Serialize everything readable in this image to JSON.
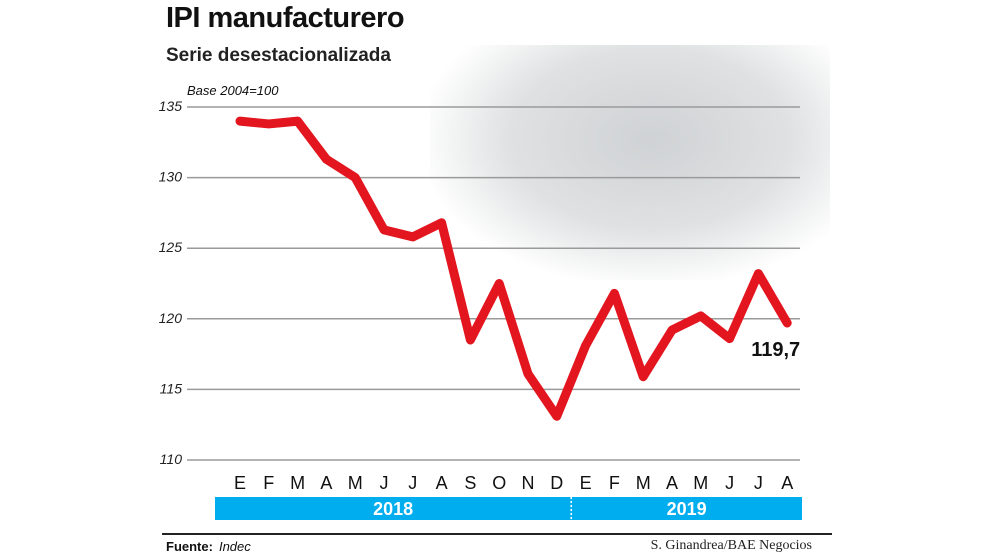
{
  "title": "IPI manufacturero",
  "subtitle": "Serie desestacionalizada",
  "footer": {
    "source_label": "Fuente:",
    "source_value": "Indec",
    "credit": "S. Ginandrea/BAE Negocios"
  },
  "colors": {
    "line": "#e3161f",
    "year_band": "#00adef",
    "grid": "#9a9a9a"
  },
  "background_image": "factory-workers-car-assembly-photo",
  "chart_data": {
    "type": "line",
    "title": "IPI manufacturero",
    "subtitle": "Serie desestacionalizada",
    "ylabel": "Base 2004=100",
    "ylim": [
      110,
      135
    ],
    "yticks": [
      110,
      115,
      120,
      125,
      130,
      135
    ],
    "grid": true,
    "categories": [
      "E",
      "F",
      "M",
      "A",
      "M",
      "J",
      "J",
      "A",
      "S",
      "O",
      "N",
      "D",
      "E",
      "F",
      "M",
      "A",
      "M",
      "J",
      "J",
      "A"
    ],
    "years": [
      {
        "label": "2018",
        "months": 12
      },
      {
        "label": "2019",
        "months": 8
      }
    ],
    "values": [
      134.0,
      133.8,
      134.0,
      131.3,
      130.0,
      126.3,
      125.8,
      126.8,
      118.5,
      122.5,
      116.1,
      113.1,
      118.1,
      121.8,
      115.9,
      119.2,
      120.2,
      118.6,
      123.2,
      119.7
    ],
    "annotation": "119,7"
  }
}
